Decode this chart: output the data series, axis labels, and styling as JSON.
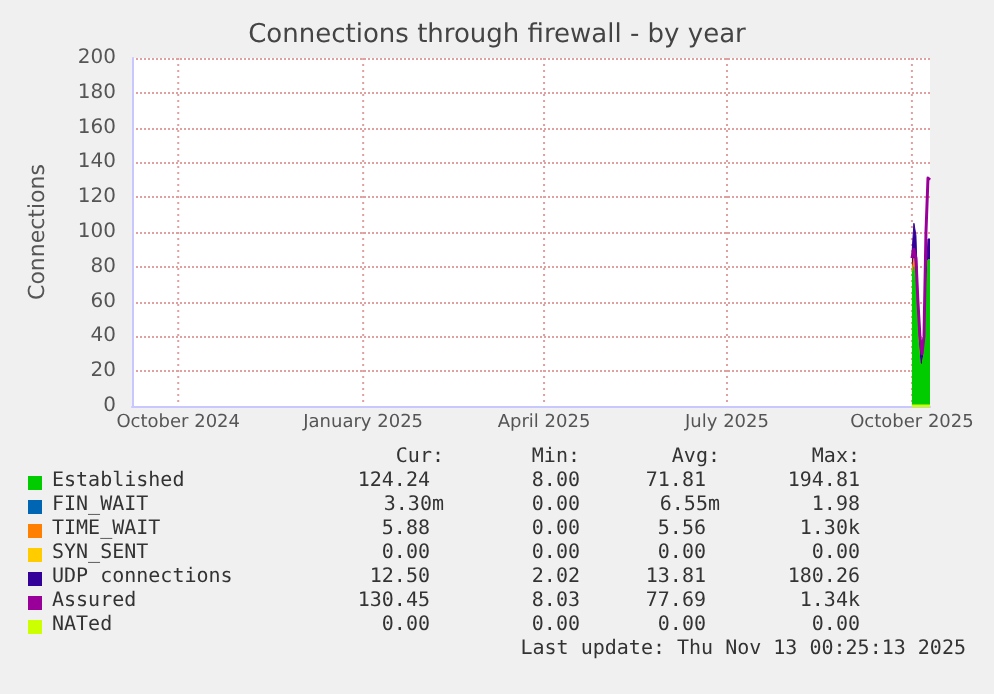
{
  "chart_data": {
    "type": "area",
    "title": "Connections through firewall - by year",
    "ylabel": "Connections",
    "stacked": true,
    "grid": true,
    "legend": "bottom",
    "marker": "none",
    "x": [
      "2025-10-01",
      "2025-10-02",
      "2025-10-03",
      "2025-10-04",
      "2025-10-05",
      "2025-10-06",
      "2025-10-07",
      "2025-10-08",
      "2025-10-09",
      "2025-10-10"
    ],
    "xlim": [
      "2024-09-08",
      "2025-10-10"
    ],
    "xticks": [
      {
        "value": "2024-10-01",
        "label": "October 2024"
      },
      {
        "value": "2025-01-01",
        "label": "January 2025"
      },
      {
        "value": "2025-04-01",
        "label": "April 2025"
      },
      {
        "value": "2025-07-01",
        "label": "July 2025"
      },
      {
        "value": "2025-10-01",
        "label": "October 2025"
      }
    ],
    "ylim": [
      0,
      200
    ],
    "yticks": [
      0,
      20,
      40,
      60,
      80,
      100,
      120,
      140,
      160,
      180,
      200
    ],
    "series": [
      {
        "name": "Established",
        "color": "#00cc00",
        "values": [
          75,
          80,
          70,
          40,
          25,
          23,
          30,
          60,
          84,
          84
        ]
      },
      {
        "name": "FIN_WAIT",
        "color": "#0066b3",
        "values": [
          null,
          null,
          null,
          null,
          null,
          null,
          null,
          null,
          null,
          null
        ]
      },
      {
        "name": "TIME_WAIT",
        "color": "#ff8000",
        "values": [
          2,
          5,
          3,
          1,
          0,
          0,
          0,
          0,
          0,
          0
        ]
      },
      {
        "name": "SYN_SENT",
        "color": "#ffcc00",
        "values": [
          null,
          null,
          null,
          null,
          null,
          null,
          null,
          null,
          null,
          null
        ]
      },
      {
        "name": "UDP connections",
        "color": "#330099",
        "values": [
          10,
          20,
          25,
          20,
          15,
          10,
          12,
          12,
          12,
          12
        ]
      },
      {
        "name": "Assured",
        "color": "#990099",
        "type": "line",
        "values": [
          85,
          90,
          85,
          60,
          40,
          30,
          40,
          100,
          131,
          130
        ]
      },
      {
        "name": "NATed",
        "color": "#ccff00",
        "type": "line",
        "values": [
          0,
          0,
          0,
          0,
          0,
          0,
          0,
          0,
          0,
          0
        ]
      }
    ],
    "annotations": [
      "Cur:",
      "Min:",
      "Avg:",
      "Max:",
      "124.24",
      "8.00",
      "71.81",
      "194.81",
      "3.30m",
      "0.00",
      "6.55m",
      "1.98",
      "5.88",
      "0.00",
      "5.56",
      "1.30k",
      "0.00",
      "0.00",
      "0.00",
      "0.00",
      "12.50",
      "2.02",
      "13.81",
      "180.26",
      "130.45",
      "8.03",
      "77.69",
      "1.34k",
      "0.00",
      "0.00",
      "0.00",
      "0.00",
      "Last update: Thu Nov 13 00:25:13 2025"
    ]
  }
}
